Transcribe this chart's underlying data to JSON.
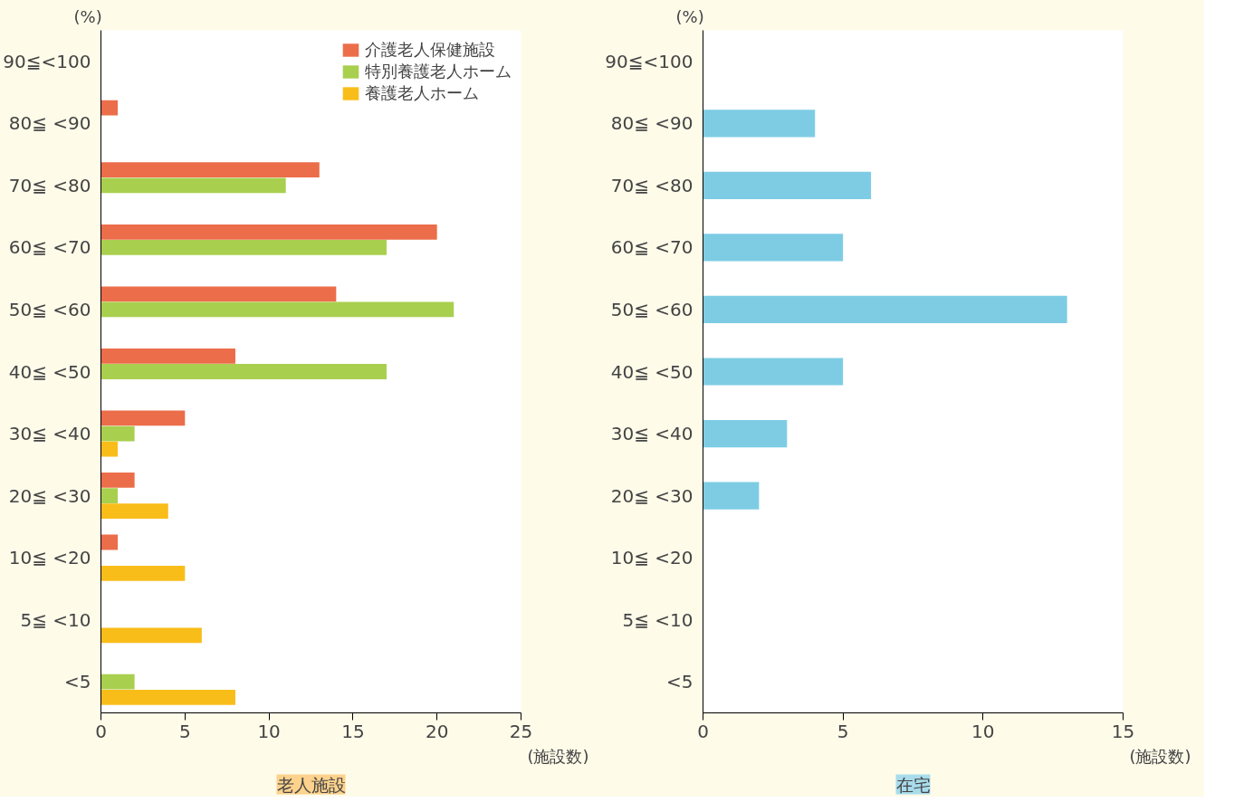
{
  "chart_data": [
    {
      "type": "bar",
      "orientation": "horizontal",
      "title": "老人施設",
      "xlabel": "(施設数)",
      "ylabel": "(%)",
      "categories": [
        "90≦<100",
        "80≦ <90",
        "70≦ <80",
        "60≦ <70",
        "50≦ <60",
        "40≦ <50",
        "30≦ <40",
        "20≦ <30",
        "10≦ <20",
        "5≦ <10",
        "<5"
      ],
      "series": [
        {
          "name": "介護老人保健施設",
          "color": "#ec6d4a",
          "values": [
            null,
            1,
            13,
            20,
            14,
            8,
            5,
            2,
            1,
            null,
            null
          ]
        },
        {
          "name": "特別養護老人ホーム",
          "color": "#a9cf4f",
          "values": [
            null,
            null,
            11,
            17,
            21,
            17,
            2,
            1,
            null,
            null,
            2
          ]
        },
        {
          "name": "養護老人ホーム",
          "color": "#f9bd1a",
          "values": [
            null,
            null,
            null,
            null,
            null,
            null,
            1,
            4,
            5,
            6,
            8
          ]
        }
      ],
      "xlim": [
        0,
        25
      ],
      "xticks": [
        0,
        5,
        10,
        15,
        20,
        25
      ],
      "grid": false,
      "legend": "top right"
    },
    {
      "type": "bar",
      "orientation": "horizontal",
      "title": "在宅",
      "xlabel": "(施設数)",
      "ylabel": "(%)",
      "categories": [
        "90≦<100",
        "80≦ <90",
        "70≦ <80",
        "60≦ <70",
        "50≦ <60",
        "40≦ <50",
        "30≦ <40",
        "20≦ <30",
        "10≦ <20",
        "5≦ <10",
        "<5"
      ],
      "series": [
        {
          "color": "#7ecce4",
          "values": [
            null,
            4,
            6,
            5,
            13,
            5,
            3,
            2,
            null,
            null,
            null
          ]
        }
      ],
      "xlim": [
        0,
        15
      ],
      "xticks": [
        0,
        5,
        10,
        15
      ],
      "grid": false,
      "legend": false
    }
  ]
}
